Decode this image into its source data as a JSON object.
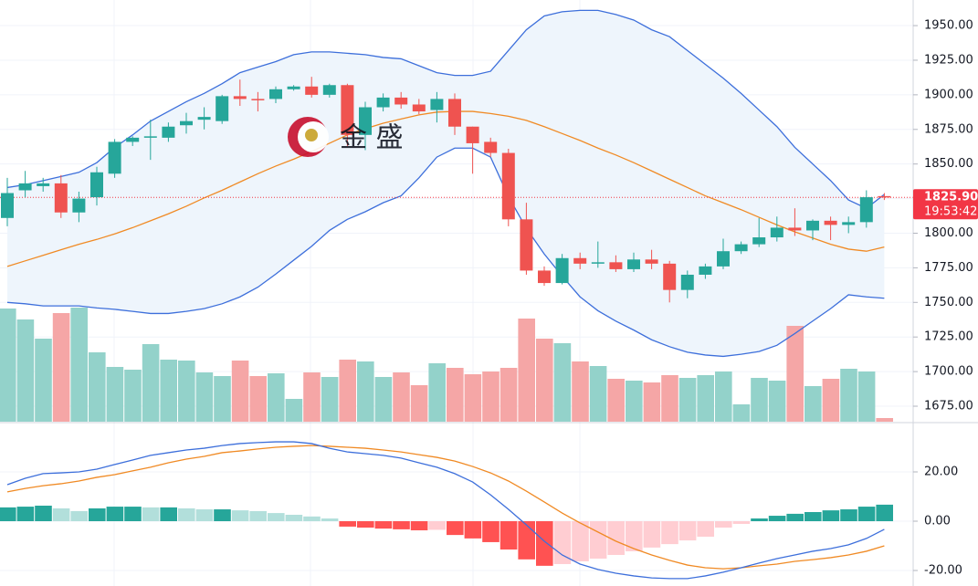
{
  "chart_data": [
    {
      "type": "candlestick",
      "open": [
        1811,
        1831,
        1834,
        1836,
        1815,
        1826,
        1843,
        1866,
        1869,
        1869,
        1878,
        1882,
        1881,
        1899,
        1897,
        1897,
        1904,
        1906,
        1900,
        1907,
        1871,
        1891,
        1898,
        1893,
        1889,
        1897,
        1877,
        1866,
        1858,
        1810,
        1773,
        1764,
        1782,
        1778,
        1779,
        1774,
        1781,
        1778,
        1759,
        1770,
        1776,
        1787,
        1792,
        1797,
        1804,
        1802,
        1809,
        1806,
        1808,
        1826.8
      ],
      "high": [
        1840,
        1845,
        1840,
        1842,
        1830,
        1848,
        1868,
        1870,
        1882,
        1880,
        1887,
        1891,
        1900,
        1911,
        1902,
        1906,
        1907,
        1913,
        1908,
        1908,
        1895,
        1901,
        1902,
        1897,
        1902,
        1901,
        1877,
        1869,
        1861,
        1822,
        1776,
        1785,
        1786,
        1794,
        1784,
        1786,
        1788,
        1780,
        1773,
        1778,
        1796,
        1794,
        1811,
        1812,
        1818,
        1810,
        1812,
        1812,
        1831,
        1829
      ],
      "low": [
        1805,
        1826,
        1830,
        1811,
        1808,
        1820,
        1840,
        1863,
        1853,
        1866,
        1872,
        1875,
        1879,
        1892,
        1888,
        1894,
        1903,
        1898,
        1898,
        1863,
        1860,
        1888,
        1890,
        1886,
        1880,
        1871,
        1843,
        1855,
        1805,
        1770,
        1762,
        1763,
        1774,
        1775,
        1772,
        1772,
        1774,
        1750,
        1753,
        1767,
        1774,
        1785,
        1790,
        1794,
        1798,
        1795,
        1795,
        1800,
        1804,
        1824
      ],
      "close": [
        1829,
        1836,
        1836,
        1815,
        1825,
        1844,
        1866,
        1869,
        1870,
        1877,
        1881,
        1884,
        1899,
        1897,
        1896.5,
        1904,
        1906,
        1900,
        1907,
        1871,
        1891,
        1898,
        1893,
        1888,
        1897,
        1877,
        1865,
        1858,
        1810,
        1773,
        1764,
        1782,
        1778,
        1779,
        1774,
        1781,
        1778,
        1759,
        1770,
        1776,
        1787,
        1792,
        1797,
        1804,
        1802,
        1809,
        1806,
        1808,
        1826,
        1825.9
      ],
      "up_color": "#26a69a",
      "down_color": "#ef5350",
      "upper_band": {
        "color": "#3d6fdb",
        "values": [
          1833,
          1835,
          1838,
          1841,
          1844,
          1851,
          1862,
          1871,
          1881,
          1888,
          1895,
          1901,
          1908,
          1916,
          1920,
          1924,
          1929,
          1931,
          1931,
          1930,
          1929,
          1927,
          1926,
          1921,
          1916,
          1914,
          1914,
          1917,
          1932,
          1947,
          1957,
          1960,
          1961,
          1961,
          1958,
          1954,
          1947,
          1942,
          1932,
          1922,
          1912,
          1901,
          1889,
          1877,
          1862,
          1850,
          1838,
          1824,
          1818,
          1828
        ]
      },
      "middle_band": {
        "color": "#f08a24",
        "values": [
          1776,
          1780,
          1784,
          1788,
          1792,
          1795.5,
          1799.5,
          1804,
          1809,
          1814,
          1819.5,
          1825.5,
          1831,
          1837,
          1843,
          1848.5,
          1853.5,
          1859,
          1865,
          1871,
          1875.5,
          1879.5,
          1882.5,
          1885.5,
          1887.5,
          1888,
          1888,
          1886.5,
          1884.5,
          1881.5,
          1877,
          1872,
          1867,
          1861.5,
          1856.5,
          1851,
          1845,
          1839,
          1833,
          1827,
          1822,
          1817,
          1811.5,
          1806,
          1801,
          1796.5,
          1792,
          1788.5,
          1787,
          1790
        ]
      },
      "lower_band": {
        "color": "#3d6fdb",
        "values": [
          1750,
          1749,
          1747.5,
          1747.5,
          1747.5,
          1746,
          1745,
          1743.5,
          1742,
          1742,
          1743.5,
          1745.5,
          1749,
          1754,
          1761,
          1770.5,
          1780.5,
          1790.5,
          1802,
          1810,
          1815.5,
          1822,
          1827,
          1840,
          1855,
          1861.5,
          1861.5,
          1855,
          1826.5,
          1803.5,
          1785,
          1769,
          1754,
          1744,
          1736.5,
          1730,
          1723,
          1718,
          1714,
          1712,
          1711,
          1712.5,
          1714.5,
          1719,
          1727.5,
          1736.5,
          1745.5,
          1755.5,
          1754,
          1753
        ]
      },
      "band_fill": "#eef5fc",
      "volume": {
        "up_color": "#93d2ca",
        "down_color": "#f5a6a6",
        "values": [
          124,
          112,
          91,
          119,
          125,
          76,
          60,
          57,
          85,
          68,
          67,
          54,
          50,
          67,
          50,
          53,
          25,
          54,
          49,
          68,
          66,
          49,
          54,
          40,
          64,
          59,
          52,
          55,
          59,
          113,
          91,
          86,
          66,
          61,
          47,
          45,
          43,
          51,
          48,
          51,
          55,
          19,
          48,
          45,
          105,
          39,
          47,
          58,
          55,
          4
        ]
      },
      "ylim": [
        1663.8,
        1968.5
      ],
      "yticks": [
        {
          "value": 1675,
          "label": "1675.00"
        },
        {
          "value": 1700,
          "label": "1700.00"
        },
        {
          "value": 1725,
          "label": "1725.00"
        },
        {
          "value": 1750,
          "label": "1750.00"
        },
        {
          "value": 1775,
          "label": "1775.00"
        },
        {
          "value": 1800,
          "label": "1800.00"
        },
        {
          "value": 1825,
          "label": "1825.00"
        },
        {
          "value": 1850,
          "label": "1850.00"
        },
        {
          "value": 1875,
          "label": "1875.00"
        },
        {
          "value": 1900,
          "label": "1900.00"
        },
        {
          "value": 1925,
          "label": "1925.00"
        },
        {
          "value": 1950,
          "label": "1950.00"
        }
      ],
      "grid": true,
      "last_price": {
        "value": 1825.9,
        "label": "1825.90"
      },
      "last_price_color": "#f23645",
      "countdown": "19:53:42",
      "watermark": "金 盛"
    },
    {
      "type": "macd",
      "macd": {
        "color": "#3d6fdb",
        "values": [
          14.8,
          17.4,
          19.3,
          19.6,
          20.0,
          21.1,
          23.0,
          24.8,
          26.7,
          27.8,
          28.9,
          29.6,
          30.7,
          31.5,
          31.9,
          32.2,
          32.2,
          31.5,
          29.6,
          28.1,
          27.4,
          26.7,
          25.6,
          23.7,
          21.9,
          19.3,
          15.9,
          10.7,
          4.8,
          -1.5,
          -8.1,
          -13.7,
          -17.4,
          -19.6,
          -21.1,
          -22.2,
          -23.0,
          -23.3,
          -23.3,
          -22.2,
          -20.7,
          -18.9,
          -17.0,
          -15.2,
          -13.7,
          -12.2,
          -11.1,
          -9.6,
          -7.0,
          -3.3
        ]
      },
      "signal": {
        "color": "#f08a24",
        "values": [
          11.9,
          13.3,
          14.4,
          15.2,
          16.3,
          17.8,
          18.9,
          20.4,
          21.9,
          23.7,
          25.2,
          26.3,
          27.8,
          28.5,
          29.3,
          30.0,
          30.4,
          30.7,
          30.4,
          30.0,
          29.6,
          28.9,
          28.1,
          27.0,
          25.9,
          24.4,
          22.2,
          19.6,
          16.3,
          12.2,
          7.8,
          3.3,
          -0.7,
          -4.4,
          -8.1,
          -11.1,
          -13.7,
          -15.9,
          -17.8,
          -18.9,
          -19.3,
          -18.9,
          -18.1,
          -17.4,
          -16.3,
          -15.6,
          -14.8,
          -13.7,
          -12.2,
          -10.0
        ]
      },
      "histogram": {
        "up_color": "#26a69a",
        "up_fade_color": "#b2dfdb",
        "down_color": "#ff5252",
        "down_fade_color": "#ffcdd2",
        "values": [
          5.6,
          5.9,
          6.3,
          5.2,
          4.1,
          5.2,
          5.9,
          5.9,
          5.6,
          5.6,
          5.2,
          4.8,
          4.8,
          4.4,
          4.1,
          3.3,
          2.6,
          1.9,
          1.1,
          -2.2,
          -2.6,
          -3.0,
          -3.3,
          -3.7,
          -3.5,
          -5.6,
          -7.0,
          -8.5,
          -11.5,
          -15.5,
          -18.1,
          -17.4,
          -16.3,
          -15.2,
          -13.7,
          -12.2,
          -10.7,
          -9.3,
          -7.8,
          -6.3,
          -2.6,
          -1.1,
          1.1,
          2.2,
          3.0,
          3.7,
          4.4,
          4.8,
          5.9,
          6.7
        ]
      },
      "ylim": [
        -26.3,
        40
      ],
      "yticks": [
        {
          "value": -20,
          "label": "-20.00"
        },
        {
          "value": 0,
          "label": "0.00"
        },
        {
          "value": 20,
          "label": "20.00"
        }
      ],
      "grid": true
    }
  ]
}
